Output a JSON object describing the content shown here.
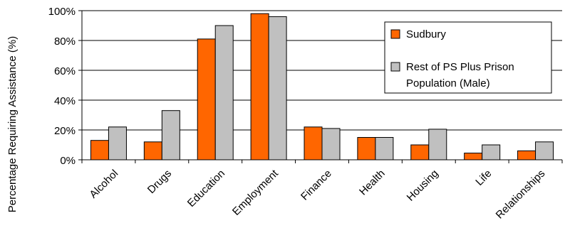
{
  "chart_data": {
    "type": "bar",
    "ylabel": "Percentage Requiring Assistance (%)",
    "xlabel": "",
    "ylim": [
      0,
      100
    ],
    "yticks": [
      "0%",
      "20%",
      "40%",
      "60%",
      "80%",
      "100%"
    ],
    "ytick_values": [
      0,
      20,
      40,
      60,
      80,
      100
    ],
    "grid": true,
    "legend_position": "top-right",
    "categories": [
      "Alcohol",
      "Drugs",
      "Education",
      "Employment",
      "Finance",
      "Health",
      "Housing",
      "Life",
      "Relationships"
    ],
    "series": [
      {
        "name": "Sudbury",
        "color": "#ff6600",
        "values": [
          13,
          12,
          81,
          98,
          22,
          15,
          10,
          4.5,
          6
        ]
      },
      {
        "name": "Rest of PS Plus Prison Population (Male)",
        "color": "#c0c0c0",
        "values": [
          22,
          33,
          90,
          96,
          21,
          15,
          20.5,
          10,
          12
        ]
      }
    ],
    "legend_lines": [
      [
        "Sudbury"
      ],
      [
        "Rest of PS Plus Prison",
        "Population (Male)"
      ]
    ]
  }
}
